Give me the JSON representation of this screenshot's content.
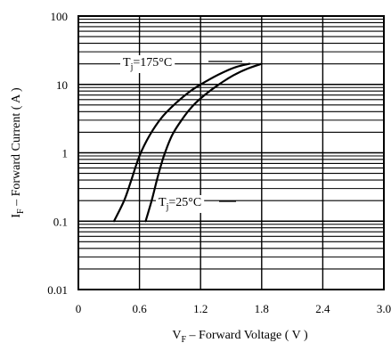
{
  "chart_data": {
    "type": "line",
    "title": "",
    "xlabel": {
      "main": "V",
      "sub": "F",
      "rest": " – Forward Voltage ( V )"
    },
    "ylabel": {
      "main": "I",
      "sub": "F",
      "rest": " – Forward Current ( A )"
    },
    "x_scale": "linear",
    "y_scale": "log",
    "xlim": [
      0,
      3.0
    ],
    "ylim": [
      0.01,
      100
    ],
    "x_ticks": [
      0,
      0.6,
      1.2,
      1.8,
      2.4,
      3.0
    ],
    "x_tick_labels": [
      "0",
      "0.6",
      "1.2",
      "1.8",
      "2.4",
      "3.0"
    ],
    "y_ticks": [
      0.01,
      0.1,
      1,
      10,
      100
    ],
    "y_tick_labels": [
      "0.01",
      "0.1",
      "1",
      "10",
      "100"
    ],
    "grid": true,
    "series": [
      {
        "name": "Tj=175°C",
        "label": {
          "main": "T",
          "sub": "j",
          "rest": "=175°C"
        },
        "x": [
          0.35,
          0.45,
          0.52,
          0.6,
          0.7,
          0.82,
          0.95,
          1.1,
          1.25,
          1.4,
          1.55,
          1.68
        ],
        "y": [
          0.1,
          0.2,
          0.4,
          0.9,
          1.8,
          3.3,
          5.2,
          8.0,
          11.0,
          14.5,
          18.0,
          20.0
        ]
      },
      {
        "name": "Tj=25°C",
        "label": {
          "main": "T",
          "sub": "j",
          "rest": "=25°C"
        },
        "x": [
          0.66,
          0.72,
          0.78,
          0.84,
          0.92,
          1.02,
          1.12,
          1.24,
          1.38,
          1.52,
          1.66,
          1.8
        ],
        "y": [
          0.1,
          0.2,
          0.45,
          0.9,
          1.8,
          3.1,
          4.8,
          7.0,
          10.0,
          13.5,
          17.0,
          20.0
        ]
      }
    ]
  }
}
